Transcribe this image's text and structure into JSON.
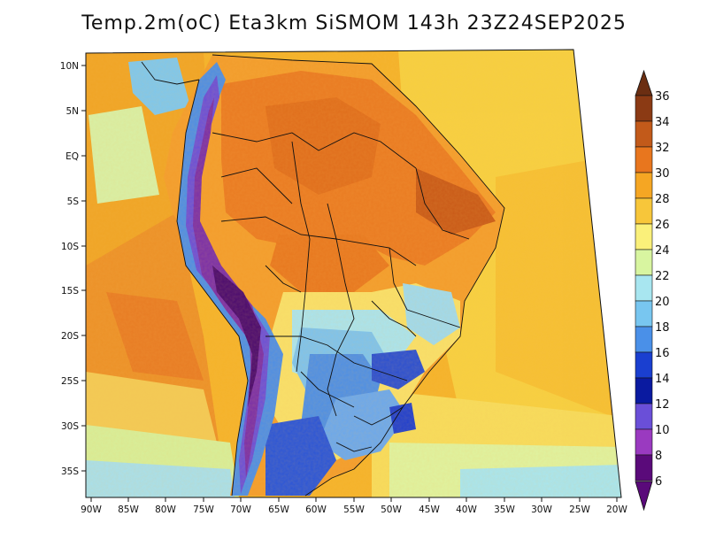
{
  "title": "Temp.2m(oC) Eta3km SiSMOM 143h 23Z24SEP2025",
  "lat_labels": [
    "10N",
    "5N",
    "EQ",
    "5S",
    "10S",
    "15S",
    "20S",
    "25S",
    "30S",
    "35S"
  ],
  "lon_labels": [
    "90W",
    "85W",
    "80W",
    "75W",
    "70W",
    "65W",
    "60W",
    "55W",
    "50W",
    "45W",
    "40W",
    "35W",
    "30W",
    "25W",
    "20W"
  ],
  "colorbar": {
    "labels": [
      "36",
      "34",
      "32",
      "30",
      "28",
      "26",
      "24",
      "22",
      "20",
      "18",
      "16",
      "14",
      "12",
      "10",
      "8",
      "6"
    ],
    "colors": [
      "#6b2e12",
      "#8b3a14",
      "#c25a1a",
      "#e8761e",
      "#f5a623",
      "#f7c63a",
      "#faf07a",
      "#d8f5a0",
      "#a8e6f0",
      "#78c6f0",
      "#4a90e8",
      "#1a3fd0",
      "#0a1aa0",
      "#6a4fd8",
      "#9a3ac0",
      "#5a0a7a"
    ]
  },
  "legend_note": "temperature scale in degrees Celsius"
}
